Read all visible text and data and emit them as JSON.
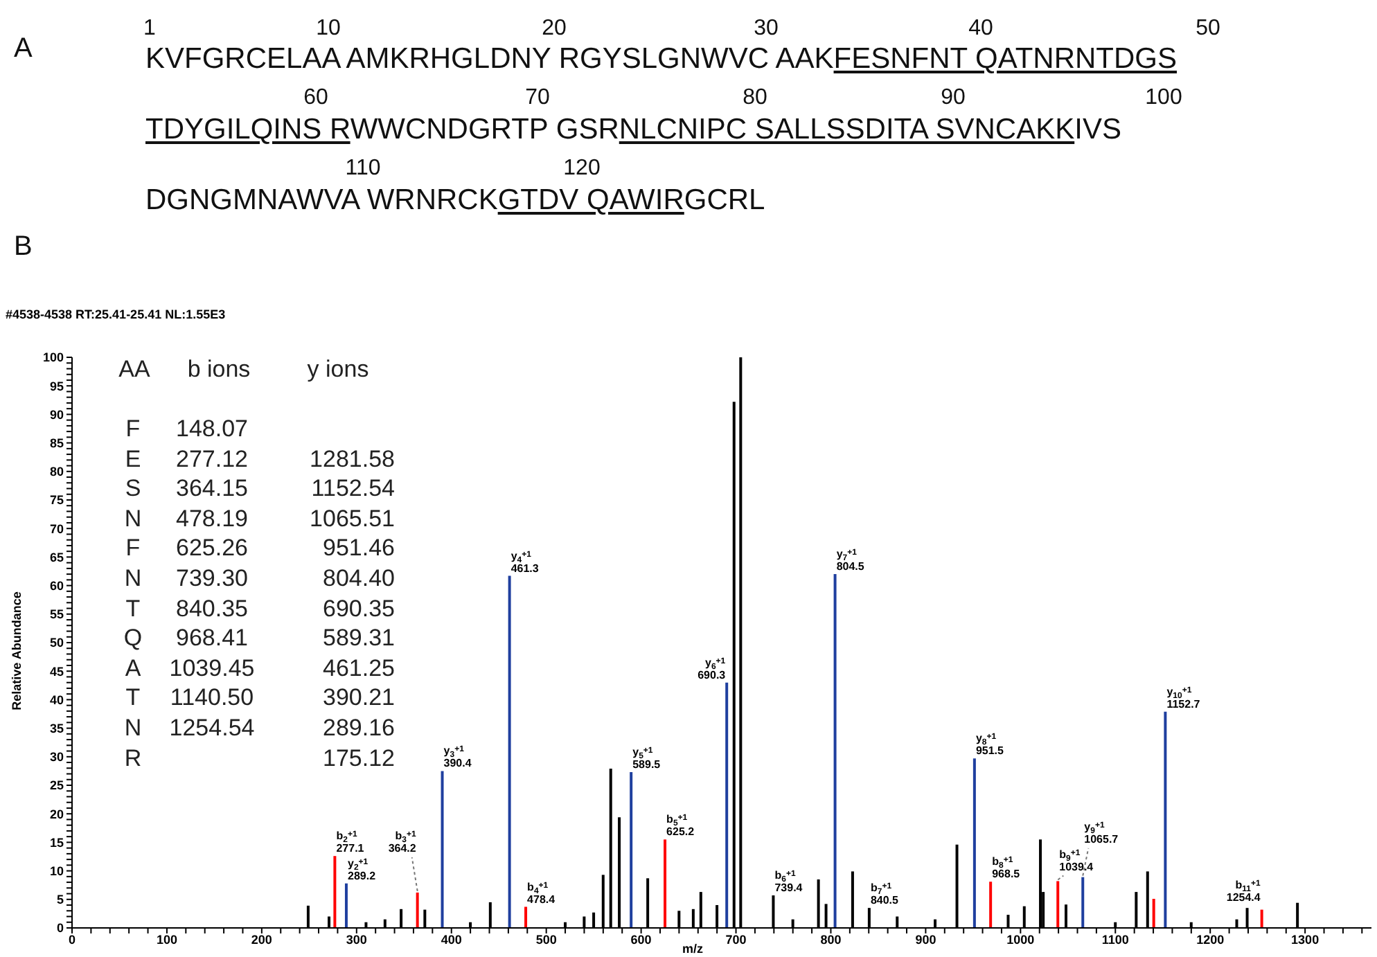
{
  "chart_data": {
    "type": "bar",
    "title": "#4538-4538 RT:25.41-25.41 NL:1.55E3",
    "xlabel": "m/z",
    "ylabel": "Relative Abundance",
    "x": [
      249,
      271,
      277.1,
      289.2,
      310,
      330,
      347,
      364.2,
      372,
      390.4,
      420,
      441,
      461.3,
      478.4,
      520,
      540,
      550,
      560,
      568,
      577,
      589.5,
      607,
      625.2,
      640,
      655,
      663,
      680,
      690.3,
      698,
      705,
      739.4,
      760,
      787,
      795,
      804.5,
      823,
      840.5,
      870,
      910,
      933,
      951.5,
      968.5,
      987,
      1004,
      1021,
      1024,
      1039.4,
      1048,
      1065.7,
      1100,
      1122,
      1134,
      1140.5,
      1152.7,
      1180,
      1228,
      1239,
      1254.4,
      1292
    ],
    "values": [
      3.9,
      2.0,
      12.6,
      7.8,
      1.0,
      1.5,
      3.3,
      6.2,
      3.2,
      27.5,
      1.0,
      4.5,
      61.7,
      3.7,
      1.0,
      2.0,
      2.7,
      9.3,
      27.9,
      19.4,
      27.3,
      8.7,
      15.5,
      3.0,
      3.3,
      6.3,
      4.0,
      43.0,
      92.2,
      100,
      5.7,
      1.5,
      8.5,
      4.2,
      62.0,
      9.9,
      3.5,
      2.0,
      1.5,
      14.6,
      29.7,
      8.1,
      2.3,
      3.8,
      15.5,
      6.3,
      8.2,
      4.1,
      8.9,
      1.0,
      6.3,
      9.9,
      5.1,
      37.9,
      1.0,
      1.5,
      3.5,
      3.2,
      4.4
    ],
    "colors": [
      "#000000",
      "#000000",
      "#ff0000",
      "#1f3f9f",
      "#000000",
      "#000000",
      "#000000",
      "#ff0000",
      "#000000",
      "#1f3f9f",
      "#000000",
      "#000000",
      "#1f3f9f",
      "#ff0000",
      "#000000",
      "#000000",
      "#000000",
      "#000000",
      "#000000",
      "#000000",
      "#1f3f9f",
      "#000000",
      "#ff0000",
      "#000000",
      "#000000",
      "#000000",
      "#000000",
      "#1f3f9f",
      "#000000",
      "#000000",
      "#000000",
      "#000000",
      "#000000",
      "#000000",
      "#1f3f9f",
      "#000000",
      "#000000",
      "#000000",
      "#000000",
      "#000000",
      "#1f3f9f",
      "#ff0000",
      "#000000",
      "#000000",
      "#000000",
      "#000000",
      "#ff0000",
      "#000000",
      "#1f3f9f",
      "#000000",
      "#000000",
      "#000000",
      "#ff0000",
      "#1f3f9f",
      "#000000",
      "#000000",
      "#000000",
      "#ff0000",
      "#000000"
    ],
    "xlim": [
      0,
      1370
    ],
    "ylim": [
      0,
      100
    ],
    "xticks": [
      0,
      {
        "value": 20,
        "label": null
      },
      {
        "value": 40,
        "label": null
      },
      {
        "value": 60,
        "label": null
      },
      {
        "value": 80,
        "label": null
      },
      100,
      {
        "value": 120,
        "label": null
      },
      {
        "value": 140,
        "label": null
      },
      {
        "value": 160,
        "label": null
      },
      {
        "value": 180,
        "label": null
      },
      200,
      {
        "value": 220,
        "label": null
      },
      {
        "value": 240,
        "label": null
      },
      {
        "value": 260,
        "label": null
      },
      {
        "value": 280,
        "label": null
      },
      300,
      {
        "value": 320,
        "label": null
      },
      {
        "value": 340,
        "label": null
      },
      {
        "value": 360,
        "label": null
      },
      {
        "value": 380,
        "label": null
      },
      400,
      {
        "value": 420,
        "label": null
      },
      {
        "value": 440,
        "label": null
      },
      {
        "value": 460,
        "label": null
      },
      {
        "value": 480,
        "label": null
      },
      500,
      {
        "value": 520,
        "label": null
      },
      {
        "value": 540,
        "label": null
      },
      {
        "value": 560,
        "label": null
      },
      {
        "value": 580,
        "label": null
      },
      600,
      {
        "value": 620,
        "label": null
      },
      {
        "value": 640,
        "label": null
      },
      {
        "value": 660,
        "label": null
      },
      {
        "value": 680,
        "label": null
      },
      700,
      {
        "value": 720,
        "label": null
      },
      {
        "value": 740,
        "label": null
      },
      {
        "value": 760,
        "label": null
      },
      {
        "value": 780,
        "label": null
      },
      800,
      {
        "value": 820,
        "label": null
      },
      {
        "value": 840,
        "label": null
      },
      {
        "value": 860,
        "label": null
      },
      {
        "value": 880,
        "label": null
      },
      900,
      {
        "value": 920,
        "label": null
      },
      {
        "value": 940,
        "label": null
      },
      {
        "value": 960,
        "label": null
      },
      {
        "value": 980,
        "label": null
      },
      1000,
      {
        "value": 1020,
        "label": null
      },
      {
        "value": 1040,
        "label": null
      },
      {
        "value": 1060,
        "label": null
      },
      {
        "value": 1080,
        "label": null
      },
      1100,
      {
        "value": 1120,
        "label": null
      },
      {
        "value": 1140,
        "label": null
      },
      {
        "value": 1160,
        "label": null
      },
      {
        "value": 1180,
        "label": null
      },
      1200,
      {
        "value": 1220,
        "label": null
      },
      {
        "value": 1240,
        "label": null
      },
      {
        "value": 1260,
        "label": null
      },
      {
        "value": 1280,
        "label": null
      },
      1300,
      {
        "value": 1320,
        "label": null
      },
      {
        "value": 1340,
        "label": null
      },
      {
        "value": 1360,
        "label": null
      }
    ],
    "yticks": [
      0,
      {
        "value": 1,
        "label": null
      },
      {
        "value": 2,
        "label": null
      },
      {
        "value": 3,
        "label": null
      },
      {
        "value": 4,
        "label": null
      },
      5,
      {
        "value": 6,
        "label": null
      },
      {
        "value": 7,
        "label": null
      },
      {
        "value": 8,
        "label": null
      },
      {
        "value": 9,
        "label": null
      },
      10,
      {
        "value": 11,
        "label": null
      },
      {
        "value": 12,
        "label": null
      },
      {
        "value": 13,
        "label": null
      },
      {
        "value": 14,
        "label": null
      },
      15,
      {
        "value": 16,
        "label": null
      },
      {
        "value": 17,
        "label": null
      },
      {
        "value": 18,
        "label": null
      },
      {
        "value": 19,
        "label": null
      },
      20,
      {
        "value": 21,
        "label": null
      },
      {
        "value": 22,
        "label": null
      },
      {
        "value": 23,
        "label": null
      },
      {
        "value": 24,
        "label": null
      },
      25,
      {
        "value": 26,
        "label": null
      },
      {
        "value": 27,
        "label": null
      },
      {
        "value": 28,
        "label": null
      },
      {
        "value": 29,
        "label": null
      },
      30,
      {
        "value": 31,
        "label": null
      },
      {
        "value": 32,
        "label": null
      },
      {
        "value": 33,
        "label": null
      },
      {
        "value": 34,
        "label": null
      },
      35,
      {
        "value": 36,
        "label": null
      },
      {
        "value": 37,
        "label": null
      },
      {
        "value": 38,
        "label": null
      },
      {
        "value": 39,
        "label": null
      },
      40,
      {
        "value": 41,
        "label": null
      },
      {
        "value": 42,
        "label": null
      },
      {
        "value": 43,
        "label": null
      },
      {
        "value": 44,
        "label": null
      },
      45,
      {
        "value": 46,
        "label": null
      },
      {
        "value": 47,
        "label": null
      },
      {
        "value": 48,
        "label": null
      },
      {
        "value": 49,
        "label": null
      },
      50,
      {
        "value": 51,
        "label": null
      },
      {
        "value": 52,
        "label": null
      },
      {
        "value": 53,
        "label": null
      },
      {
        "value": 54,
        "label": null
      },
      55,
      {
        "value": 56,
        "label": null
      },
      {
        "value": 57,
        "label": null
      },
      {
        "value": 58,
        "label": null
      },
      {
        "value": 59,
        "label": null
      },
      60,
      {
        "value": 61,
        "label": null
      },
      {
        "value": 62,
        "label": null
      },
      {
        "value": 63,
        "label": null
      },
      {
        "value": 64,
        "label": null
      },
      65,
      {
        "value": 66,
        "label": null
      },
      {
        "value": 67,
        "label": null
      },
      {
        "value": 68,
        "label": null
      },
      {
        "value": 69,
        "label": null
      },
      70,
      {
        "value": 71,
        "label": null
      },
      {
        "value": 72,
        "label": null
      },
      {
        "value": 73,
        "label": null
      },
      {
        "value": 74,
        "label": null
      },
      75,
      {
        "value": 76,
        "label": null
      },
      {
        "value": 77,
        "label": null
      },
      {
        "value": 78,
        "label": null
      },
      {
        "value": 79,
        "label": null
      },
      80,
      {
        "value": 81,
        "label": null
      },
      {
        "value": 82,
        "label": null
      },
      {
        "value": 83,
        "label": null
      },
      {
        "value": 84,
        "label": null
      },
      85,
      {
        "value": 86,
        "label": null
      },
      {
        "value": 87,
        "label": null
      },
      {
        "value": 88,
        "label": null
      },
      {
        "value": 89,
        "label": null
      },
      90,
      {
        "value": 91,
        "label": null
      },
      {
        "value": 92,
        "label": null
      },
      {
        "value": 93,
        "label": null
      },
      {
        "value": 94,
        "label": null
      },
      95,
      {
        "value": 96,
        "label": null
      },
      {
        "value": 97,
        "label": null
      },
      {
        "value": 98,
        "label": null
      },
      {
        "value": 99,
        "label": null
      },
      100
    ],
    "annotations": [
      "A",
      "1",
      "10",
      "20",
      "30",
      "40",
      "50",
      "KVFGRCELAA AMKRHGLDNY RGYSLGNWVC AAK",
      "FESNFNT QATNRNTDGS",
      "60",
      "70",
      "80",
      "90",
      "100",
      "TDYGILQINS R",
      "WWCNDGRTP GSR",
      "NLCNIPC SALLSSDITA SVNCAKK",
      "IVS",
      "110",
      "120",
      "DGNGMNAWVA WRNRCK",
      "GTDV QAWIR",
      "GCRL",
      "B",
      "AA",
      "b ions",
      "y ions",
      "F",
      "148.07",
      "E",
      "277.12",
      "1281.58",
      "S",
      "364.15",
      "1152.54",
      "N",
      "478.19",
      "1065.51",
      "F",
      "625.26",
      "951.46",
      "N",
      "739.30",
      "804.40",
      "T",
      "840.35",
      "690.35",
      "Q",
      "968.41",
      "589.31",
      "A",
      "1039.45",
      "461.25",
      "T",
      "1140.50",
      "390.21",
      "N",
      "1254.54",
      "289.16",
      "R",
      "175.12",
      {
        "text": "b$_{2}$$^{+1}$\n277.1",
        "x": 277.1,
        "y": 12.6
      },
      {
        "text": "y$_{2}$$^{+1}$\n289.2",
        "x": 289.2,
        "y": 7.8
      },
      {
        "text": "b$_{3}$$^{+1}$\n364.2",
        "x": 364.2,
        "y": 6.2
      },
      {
        "text": "y$_{3}$$^{+1}$\n390.4",
        "x": 390.4,
        "y": 27.5
      },
      {
        "text": "y$_{4}$$^{+1}$\n461.3",
        "x": 461.3,
        "y": 61.7
      },
      {
        "text": "b$_{4}$$^{+1}$\n478.4",
        "x": 478.4,
        "y": 3.7
      },
      {
        "text": "y$_{5}$$^{+1}$\n589.5",
        "x": 589.5,
        "y": 27.3
      },
      {
        "text": "b$_{5}$$^{+1}$\n625.2",
        "x": 625.2,
        "y": 15.5
      },
      {
        "text": "y$_{6}$$^{+1}$\n690.3",
        "x": 690.3,
        "y": 43.0
      },
      {
        "text": "b$_{6}$$^{+1}$\n739.4",
        "x": 739.4,
        "y": 5.7
      },
      {
        "text": "y$_{7}$$^{+1}$\n804.5",
        "x": 804.5,
        "y": 62.0
      },
      {
        "text": "b$_{7}$$^{+1}$\n840.5",
        "x": 840.5,
        "y": 3.5
      },
      {
        "text": "y$_{8}$$^{+1}$\n951.5",
        "x": 951.5,
        "y": 29.7
      },
      {
        "text": "b$_{8}$$^{+1}$\n968.5",
        "x": 968.5,
        "y": 8.1
      },
      {
        "text": "b$_{9}$$^{+1}$\n1039.4",
        "x": 1039.4,
        "y": 8.2
      },
      {
        "text": "y$_{9}$$^{+1}$\n1065.7",
        "x": 1065.7,
        "y": 8.9
      },
      {
        "text": "y$_{10}$$^{+1}$\n1152.7",
        "x": 1152.7,
        "y": 37.9
      },
      {
        "text": "b$_{11}$$^{+1}$\n1254.4",
        "x": 1254.4,
        "y": 3.2
      }
    ]
  }
}
